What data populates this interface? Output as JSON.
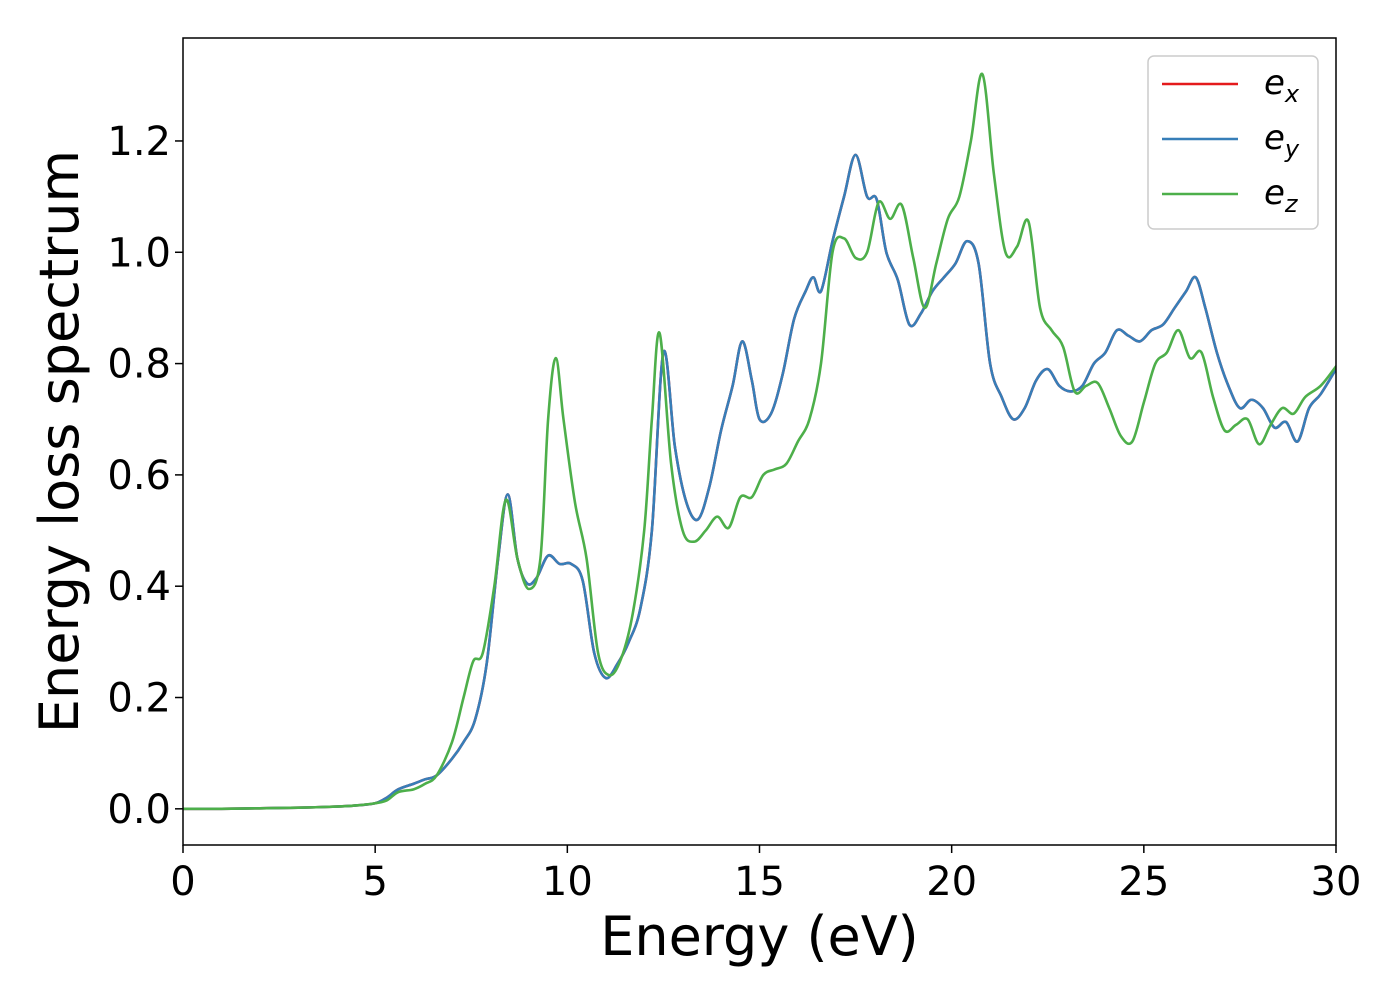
{
  "chart_data": {
    "type": "line",
    "title": "",
    "xlabel": "Energy (eV)",
    "ylabel": "Energy loss spectrum",
    "xlim": [
      0,
      30
    ],
    "ylim": [
      -0.065,
      1.385
    ],
    "xticks": [
      0,
      5,
      10,
      15,
      20,
      25,
      30
    ],
    "xtick_labels": [
      "0",
      "5",
      "10",
      "15",
      "20",
      "25",
      "30"
    ],
    "yticks": [
      0.0,
      0.2,
      0.4,
      0.6,
      0.8,
      1.0,
      1.2
    ],
    "ytick_labels": [
      "0.0",
      "0.2",
      "0.4",
      "0.6",
      "0.8",
      "1.0",
      "1.2"
    ],
    "grid": false,
    "legend_position": "top-right",
    "series": [
      {
        "name": "e_x",
        "legend_base": "e",
        "legend_sub": "x",
        "color": "#e41a1c",
        "x": [
          0,
          1,
          2,
          3,
          4,
          4.5,
          5,
          5.3,
          5.6,
          6,
          6.3,
          6.6,
          7,
          7.3,
          7.6,
          7.9,
          8.2,
          8.45,
          8.7,
          8.95,
          9.2,
          9.5,
          9.8,
          10.1,
          10.4,
          10.7,
          11,
          11.3,
          11.6,
          11.9,
          12.2,
          12.5,
          12.8,
          13.1,
          13.4,
          13.7,
          14,
          14.3,
          14.55,
          14.8,
          15,
          15.3,
          15.6,
          15.9,
          16.2,
          16.4,
          16.6,
          16.9,
          17.2,
          17.5,
          17.8,
          18.05,
          18.3,
          18.6,
          18.9,
          19.2,
          19.5,
          19.8,
          20.1,
          20.4,
          20.7,
          21,
          21.3,
          21.6,
          21.9,
          22.2,
          22.5,
          22.8,
          23.1,
          23.4,
          23.7,
          24,
          24.3,
          24.6,
          24.9,
          25.2,
          25.5,
          25.8,
          26.1,
          26.35,
          26.6,
          26.9,
          27.2,
          27.5,
          27.8,
          28.1,
          28.4,
          28.7,
          29,
          29.3,
          29.6,
          30
        ],
        "y": [
          0,
          0,
          0.001,
          0.002,
          0.004,
          0.006,
          0.01,
          0.02,
          0.035,
          0.045,
          0.053,
          0.06,
          0.09,
          0.12,
          0.16,
          0.26,
          0.45,
          0.565,
          0.45,
          0.405,
          0.415,
          0.455,
          0.44,
          0.44,
          0.41,
          0.28,
          0.235,
          0.26,
          0.3,
          0.36,
          0.5,
          0.82,
          0.65,
          0.55,
          0.52,
          0.58,
          0.68,
          0.76,
          0.84,
          0.77,
          0.7,
          0.71,
          0.78,
          0.88,
          0.93,
          0.955,
          0.93,
          1.02,
          1.1,
          1.175,
          1.1,
          1.095,
          1.0,
          0.95,
          0.87,
          0.89,
          0.93,
          0.955,
          0.98,
          1.02,
          0.98,
          0.8,
          0.74,
          0.7,
          0.72,
          0.77,
          0.79,
          0.76,
          0.75,
          0.76,
          0.8,
          0.82,
          0.86,
          0.85,
          0.84,
          0.86,
          0.87,
          0.9,
          0.93,
          0.955,
          0.9,
          0.82,
          0.76,
          0.72,
          0.735,
          0.72,
          0.685,
          0.695,
          0.66,
          0.72,
          0.745,
          0.79
        ]
      },
      {
        "name": "e_y",
        "legend_base": "e",
        "legend_sub": "y",
        "color": "#377eb8",
        "x": [
          0,
          1,
          2,
          3,
          4,
          4.5,
          5,
          5.3,
          5.6,
          6,
          6.3,
          6.6,
          7,
          7.3,
          7.6,
          7.9,
          8.2,
          8.45,
          8.7,
          8.95,
          9.2,
          9.5,
          9.8,
          10.1,
          10.4,
          10.7,
          11,
          11.3,
          11.6,
          11.9,
          12.2,
          12.5,
          12.8,
          13.1,
          13.4,
          13.7,
          14,
          14.3,
          14.55,
          14.8,
          15,
          15.3,
          15.6,
          15.9,
          16.2,
          16.4,
          16.6,
          16.9,
          17.2,
          17.5,
          17.8,
          18.05,
          18.3,
          18.6,
          18.9,
          19.2,
          19.5,
          19.8,
          20.1,
          20.4,
          20.7,
          21,
          21.3,
          21.6,
          21.9,
          22.2,
          22.5,
          22.8,
          23.1,
          23.4,
          23.7,
          24,
          24.3,
          24.6,
          24.9,
          25.2,
          25.5,
          25.8,
          26.1,
          26.35,
          26.6,
          26.9,
          27.2,
          27.5,
          27.8,
          28.1,
          28.4,
          28.7,
          29,
          29.3,
          29.6,
          30
        ],
        "y": [
          0,
          0,
          0.001,
          0.002,
          0.004,
          0.006,
          0.01,
          0.02,
          0.035,
          0.045,
          0.053,
          0.06,
          0.09,
          0.12,
          0.16,
          0.26,
          0.45,
          0.565,
          0.45,
          0.405,
          0.415,
          0.455,
          0.44,
          0.44,
          0.41,
          0.28,
          0.235,
          0.26,
          0.3,
          0.36,
          0.5,
          0.82,
          0.65,
          0.55,
          0.52,
          0.58,
          0.68,
          0.76,
          0.84,
          0.77,
          0.7,
          0.71,
          0.78,
          0.88,
          0.93,
          0.955,
          0.93,
          1.02,
          1.1,
          1.175,
          1.1,
          1.095,
          1.0,
          0.95,
          0.87,
          0.89,
          0.93,
          0.955,
          0.98,
          1.02,
          0.98,
          0.8,
          0.74,
          0.7,
          0.72,
          0.77,
          0.79,
          0.76,
          0.75,
          0.76,
          0.8,
          0.82,
          0.86,
          0.85,
          0.84,
          0.86,
          0.87,
          0.9,
          0.93,
          0.955,
          0.9,
          0.82,
          0.76,
          0.72,
          0.735,
          0.72,
          0.685,
          0.695,
          0.66,
          0.72,
          0.745,
          0.79
        ]
      },
      {
        "name": "e_z",
        "legend_base": "e",
        "legend_sub": "z",
        "color": "#4daf4a",
        "x": [
          0,
          1,
          2,
          3,
          4,
          4.5,
          5,
          5.3,
          5.6,
          6,
          6.3,
          6.6,
          7,
          7.3,
          7.55,
          7.8,
          8.1,
          8.4,
          8.7,
          9.0,
          9.3,
          9.5,
          9.7,
          9.9,
          10.2,
          10.5,
          10.8,
          11.1,
          11.4,
          11.7,
          12,
          12.2,
          12.4,
          12.7,
          13,
          13.3,
          13.6,
          13.9,
          14.2,
          14.5,
          14.8,
          15.1,
          15.4,
          15.7,
          16,
          16.3,
          16.6,
          16.9,
          17.2,
          17.5,
          17.8,
          18.1,
          18.4,
          18.7,
          19,
          19.3,
          19.6,
          19.9,
          20.2,
          20.5,
          20.8,
          21.1,
          21.4,
          21.7,
          22,
          22.3,
          22.6,
          22.9,
          23.2,
          23.5,
          23.8,
          24.1,
          24.4,
          24.7,
          25,
          25.3,
          25.6,
          25.9,
          26.2,
          26.5,
          26.8,
          27.1,
          27.4,
          27.7,
          28,
          28.3,
          28.6,
          28.9,
          29.2,
          29.6,
          30
        ],
        "y": [
          0,
          0,
          0.001,
          0.002,
          0.004,
          0.006,
          0.01,
          0.015,
          0.03,
          0.035,
          0.045,
          0.06,
          0.12,
          0.2,
          0.265,
          0.28,
          0.4,
          0.555,
          0.45,
          0.395,
          0.45,
          0.7,
          0.81,
          0.7,
          0.55,
          0.45,
          0.28,
          0.24,
          0.27,
          0.35,
          0.5,
          0.7,
          0.855,
          0.62,
          0.5,
          0.48,
          0.5,
          0.525,
          0.505,
          0.56,
          0.56,
          0.6,
          0.61,
          0.62,
          0.66,
          0.7,
          0.8,
          1.0,
          1.025,
          0.99,
          1.0,
          1.09,
          1.06,
          1.085,
          0.99,
          0.9,
          0.98,
          1.06,
          1.1,
          1.2,
          1.32,
          1.14,
          1.0,
          1.01,
          1.055,
          0.9,
          0.86,
          0.83,
          0.75,
          0.76,
          0.765,
          0.72,
          0.67,
          0.66,
          0.73,
          0.8,
          0.82,
          0.86,
          0.81,
          0.82,
          0.74,
          0.68,
          0.69,
          0.7,
          0.655,
          0.69,
          0.72,
          0.71,
          0.74,
          0.76,
          0.795
        ]
      }
    ]
  }
}
